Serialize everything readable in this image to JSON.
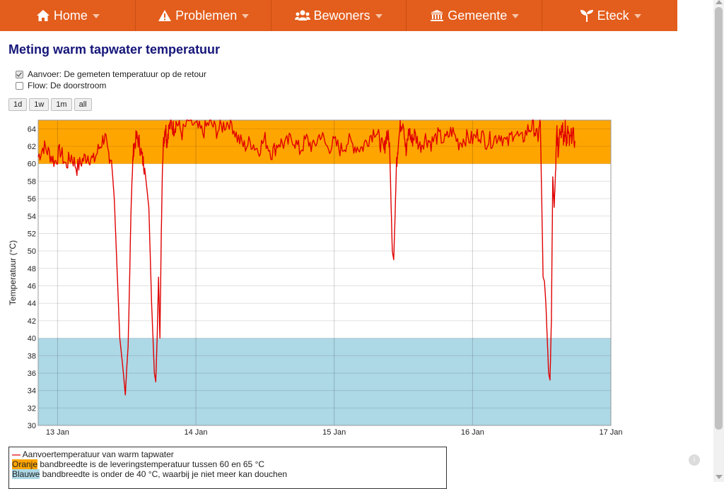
{
  "nav": {
    "items": [
      {
        "label": "Home",
        "icon": "home-icon"
      },
      {
        "label": "Problemen",
        "icon": "warning-icon"
      },
      {
        "label": "Bewoners",
        "icon": "users-icon"
      },
      {
        "label": "Gemeente",
        "icon": "bank-icon"
      },
      {
        "label": "Eteck",
        "icon": "seedling-icon"
      }
    ],
    "color": "#e35d1c"
  },
  "page": {
    "title": "Meting warm tapwater temperatuur"
  },
  "options": [
    {
      "label": "Aanvoer: De gemeten temperatuur op de retour",
      "checked": true
    },
    {
      "label": "Flow: De doorstroom",
      "checked": false
    }
  ],
  "range_buttons": [
    "1d",
    "1w",
    "1m",
    "all"
  ],
  "legend": {
    "series_label": "Aanvoertemperatuur van warm tapwater",
    "orange_word": "Oranje",
    "orange_rest": " bandbreedte is de leveringstemperatuur tussen 60 en 65 °C",
    "blue_word": "Blauwe",
    "blue_rest": " bandbreedte is onder de 40 °C, waarbij je niet meer kan douchen"
  },
  "chart_data": {
    "type": "line",
    "ylabel": "Temperatuur (°C)",
    "ylim": [
      30,
      65
    ],
    "yticks": [
      30,
      32,
      34,
      36,
      38,
      40,
      42,
      44,
      46,
      48,
      50,
      52,
      54,
      56,
      58,
      60,
      62,
      64
    ],
    "xlim": [
      12.86,
      17.0
    ],
    "xticks": [
      {
        "value": 13,
        "label": "13 Jan"
      },
      {
        "value": 14,
        "label": "14 Jan"
      },
      {
        "value": 15,
        "label": "15 Jan"
      },
      {
        "value": 16,
        "label": "16 Jan"
      },
      {
        "value": 17,
        "label": "17 Jan"
      }
    ],
    "bands": [
      {
        "from": 60,
        "to": 65,
        "color": "#ffa500"
      },
      {
        "from": 30,
        "to": 40,
        "color": "#add8e6"
      }
    ],
    "grid": true,
    "series": [
      {
        "color": "#e00000",
        "x": [
          12.86,
          12.9,
          12.94,
          12.98,
          13.02,
          13.06,
          13.1,
          13.14,
          13.18,
          13.22,
          13.26,
          13.3,
          13.34,
          13.36,
          13.39,
          13.41,
          13.43,
          13.45,
          13.47,
          13.49,
          13.5,
          13.51,
          13.52,
          13.53,
          13.54,
          13.55,
          13.57,
          13.59,
          13.61,
          13.63,
          13.66,
          13.68,
          13.7,
          13.71,
          13.72,
          13.73,
          13.74,
          13.75,
          13.76,
          13.77,
          13.78,
          13.79,
          13.8,
          13.82,
          13.84,
          13.86,
          13.9,
          13.95,
          14.0,
          14.05,
          14.1,
          14.15,
          14.2,
          14.25,
          14.3,
          14.35,
          14.4,
          14.45,
          14.5,
          14.55,
          14.6,
          14.65,
          14.7,
          14.75,
          14.8,
          14.85,
          14.9,
          14.95,
          15.0,
          15.05,
          15.1,
          15.15,
          15.2,
          15.25,
          15.3,
          15.33,
          15.36,
          15.38,
          15.4,
          15.41,
          15.42,
          15.43,
          15.44,
          15.45,
          15.46,
          15.48,
          15.5,
          15.52,
          15.54,
          15.56,
          15.58,
          15.62,
          15.66,
          15.7,
          15.75,
          15.8,
          15.85,
          15.9,
          15.95,
          16.0,
          16.05,
          16.1,
          16.15,
          16.2,
          16.25,
          16.3,
          16.35,
          16.4,
          16.44,
          16.47,
          16.49,
          16.5,
          16.51,
          16.52,
          16.53,
          16.54,
          16.55,
          16.56,
          16.57,
          16.58,
          16.59,
          16.6,
          16.61,
          16.62,
          16.63,
          16.64,
          16.65,
          16.66,
          16.67,
          16.68,
          16.69,
          16.7,
          16.72,
          16.74
        ],
        "y": [
          60.8,
          62.0,
          61.2,
          60.2,
          61.5,
          59.8,
          60.9,
          59.5,
          60.4,
          61.0,
          60.3,
          61.8,
          63.2,
          61.6,
          60.4,
          56.0,
          48.0,
          40.0,
          37.0,
          33.5,
          36.5,
          39.0,
          46.0,
          54.0,
          59.0,
          61.8,
          63.0,
          62.5,
          60.8,
          59.5,
          55.0,
          44.0,
          36.0,
          35.0,
          40.0,
          47.0,
          40.0,
          52.0,
          61.0,
          63.0,
          64.5,
          62.5,
          63.8,
          64.6,
          64.0,
          64.8,
          63.5,
          65.0,
          64.2,
          63.6,
          64.8,
          63.8,
          64.4,
          65.0,
          63.0,
          62.0,
          62.5,
          61.6,
          62.8,
          61.2,
          62.5,
          62.2,
          63.0,
          61.5,
          62.8,
          61.8,
          63.5,
          61.8,
          62.4,
          61.6,
          62.6,
          62.0,
          61.8,
          63.0,
          64.0,
          62.5,
          61.5,
          63.5,
          62.4,
          56.0,
          50.0,
          49.0,
          54.0,
          60.0,
          62.0,
          64.5,
          65.0,
          61.0,
          64.0,
          62.5,
          63.4,
          62.0,
          63.0,
          62.4,
          63.2,
          62.6,
          63.8,
          62.4,
          63.0,
          62.8,
          63.5,
          62.6,
          62.8,
          63.4,
          62.2,
          63.8,
          62.6,
          63.9,
          64.4,
          62.8,
          64.8,
          56.0,
          47.0,
          46.5,
          44.0,
          40.0,
          36.0,
          35.2,
          42.0,
          58.5,
          55.0,
          59.0,
          64.0,
          61.0,
          64.5,
          63.5,
          65.0,
          62.0,
          64.2,
          62.5,
          63.8,
          62.3,
          63.5,
          62.6
        ]
      }
    ]
  }
}
